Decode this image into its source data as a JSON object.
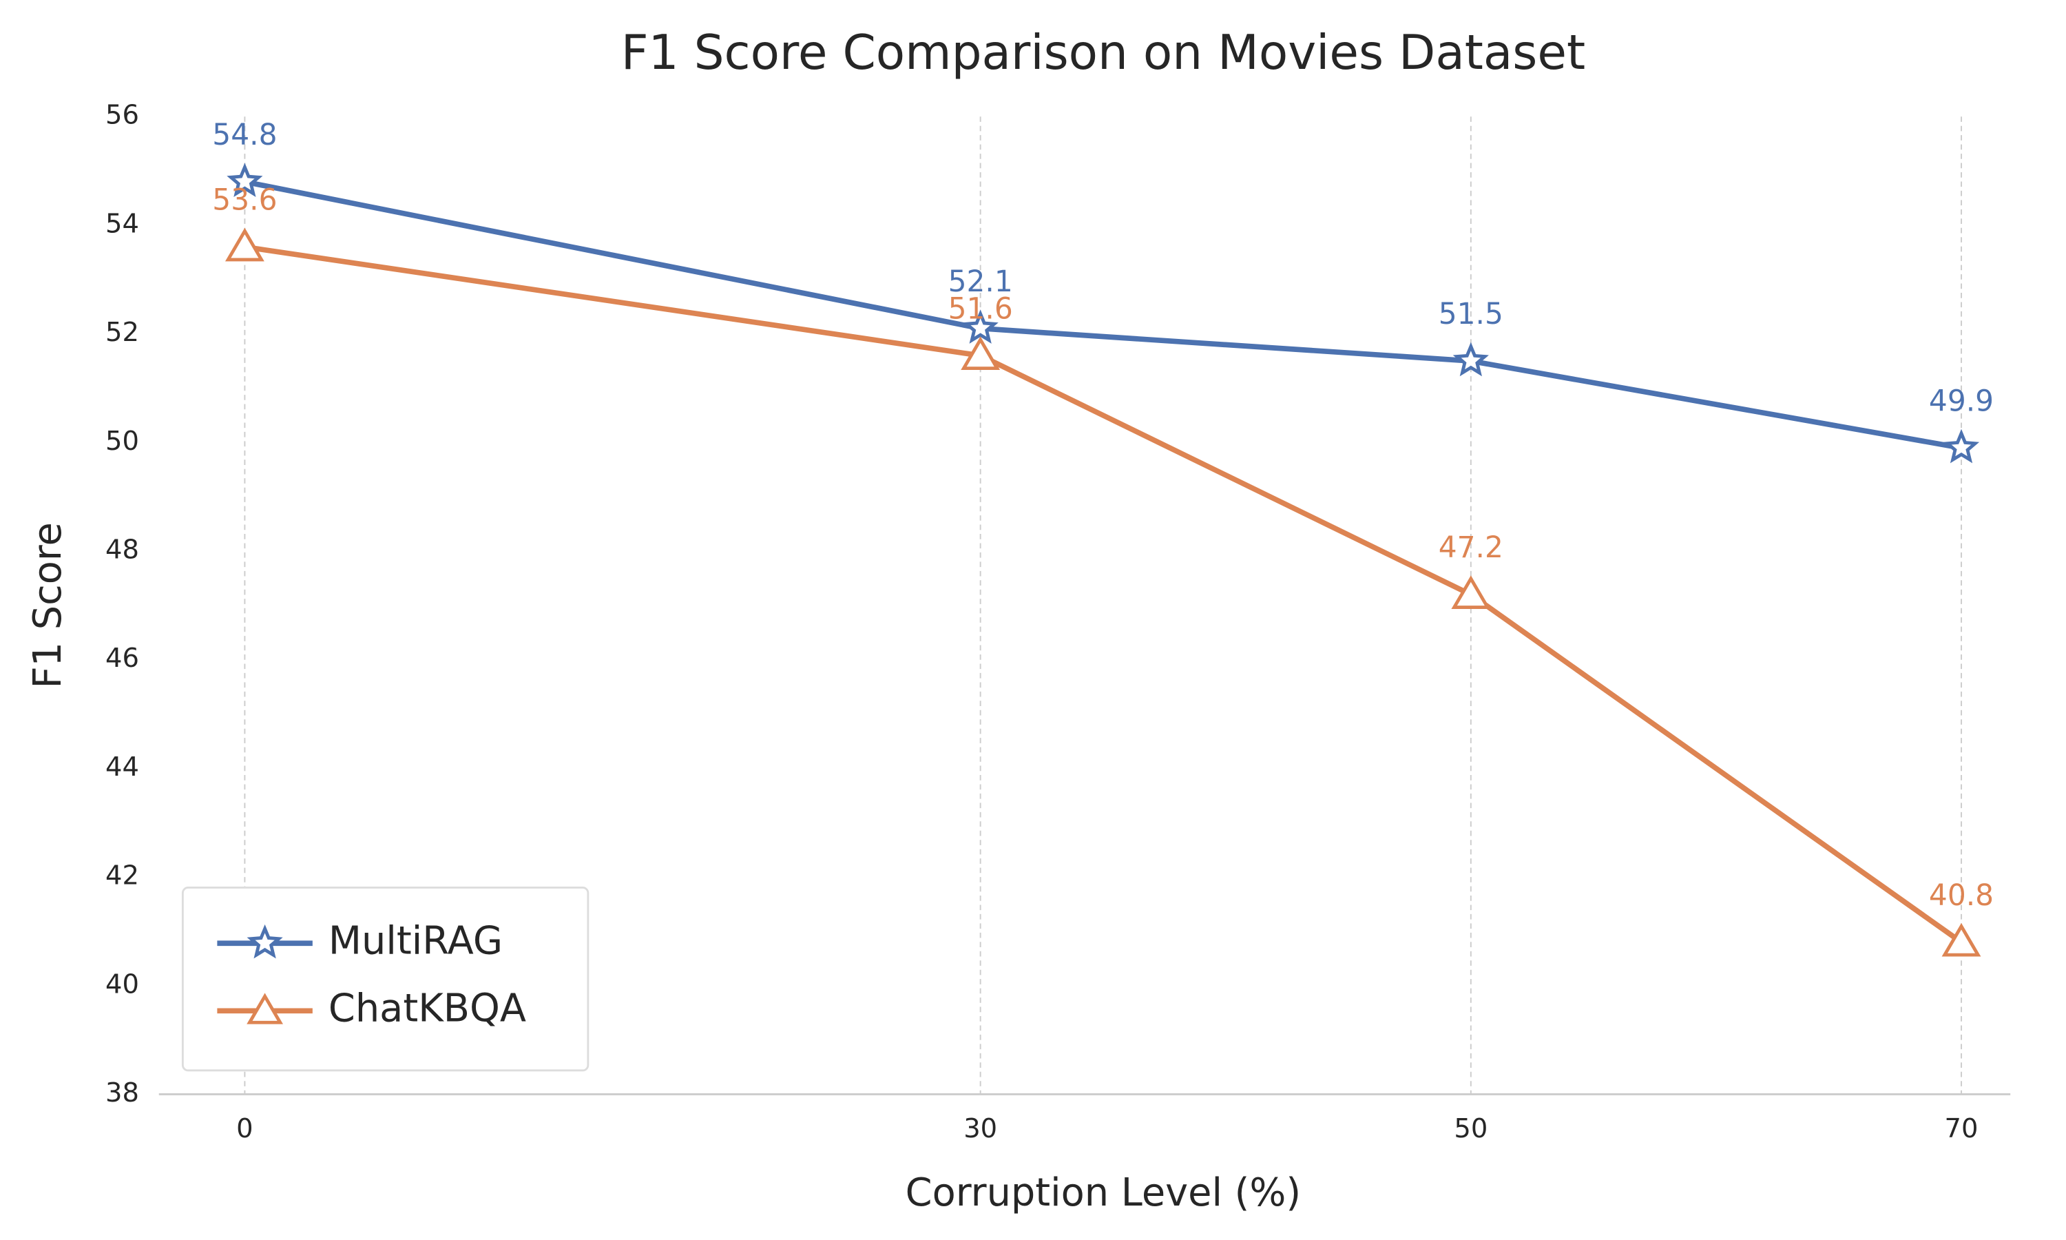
{
  "chart_data": {
    "type": "line",
    "title": "F1 Score Comparison on Movies Dataset",
    "x_label": "Corruption Level (%)",
    "y_label": "F1 Score",
    "x": [
      0,
      30,
      50,
      70
    ],
    "series": [
      {
        "name": "MultiRAG",
        "color": "#4c72b0",
        "marker": "star",
        "values": [
          54.8,
          52.1,
          51.5,
          49.9
        ]
      },
      {
        "name": "ChatKBQA",
        "color": "#dd8452",
        "marker": "triangle",
        "values": [
          53.6,
          51.6,
          47.2,
          40.8
        ]
      }
    ],
    "xlim": [
      -3.5,
      72
    ],
    "xticks": [
      0,
      30,
      50,
      70
    ],
    "ylim": [
      38,
      56
    ],
    "yticks": [
      38,
      40,
      42,
      44,
      46,
      48,
      50,
      52,
      54,
      56
    ],
    "grid": "x",
    "legend": "lower left"
  }
}
